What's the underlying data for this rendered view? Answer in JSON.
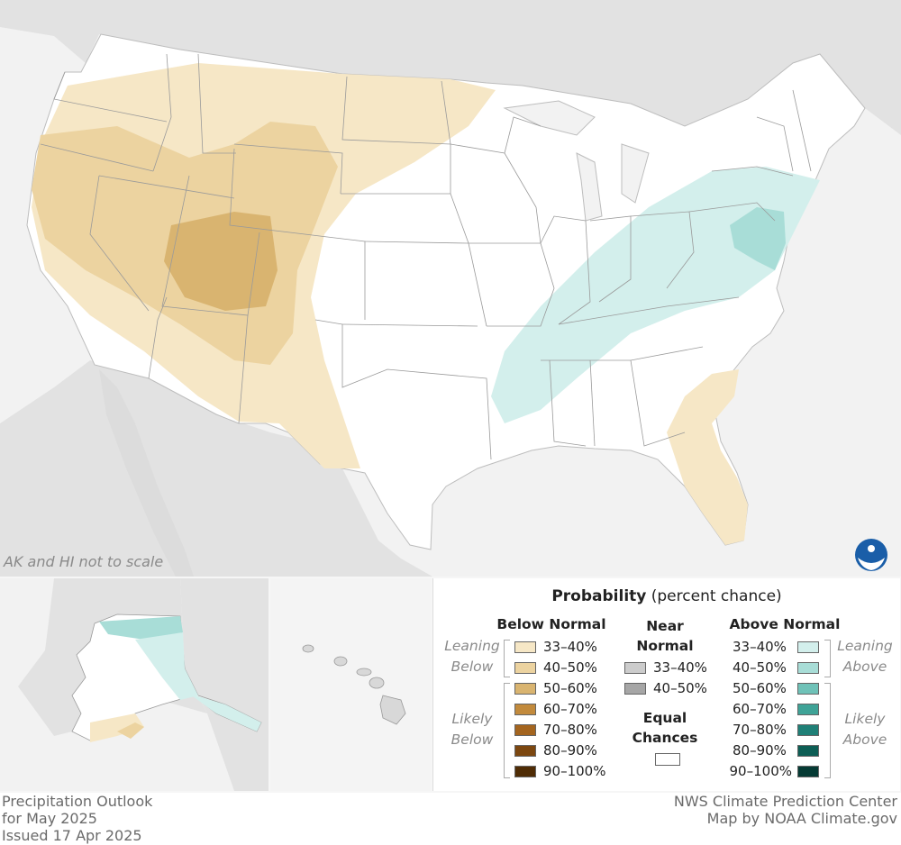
{
  "map": {
    "scale_note": "AK and HI not to scale",
    "logo": "noaa-logo",
    "colors": {
      "land_background": "#e4e4e4",
      "water": "#f2f2f2",
      "equal_chances": "#ffffff",
      "below_33_40": "#f6e7c6",
      "below_40_50": "#ecd3a0",
      "below_50_60": "#d9b470",
      "above_33_40": "#d3efec",
      "above_40_50": "#a8ddd7"
    }
  },
  "legend": {
    "title_bold": "Probability",
    "title_rest": " (percent chance)",
    "below_header": "Below Normal",
    "near_header_line1": "Near",
    "near_header_line2": "Normal",
    "above_header": "Above Normal",
    "equal_line1": "Equal",
    "equal_line2": "Chances",
    "leaning_below": [
      "Leaning",
      "Below"
    ],
    "likely_below": [
      "Likely",
      "Below"
    ],
    "leaning_above": [
      "Leaning",
      "Above"
    ],
    "likely_above": [
      "Likely",
      "Above"
    ],
    "below_items": [
      {
        "label": "33–40%",
        "color": "#f6e7c6"
      },
      {
        "label": "40–50%",
        "color": "#ecd3a0"
      },
      {
        "label": "50–60%",
        "color": "#d9b470"
      },
      {
        "label": "60–70%",
        "color": "#c28a3c"
      },
      {
        "label": "70–80%",
        "color": "#a4651f"
      },
      {
        "label": "80–90%",
        "color": "#7c4710"
      },
      {
        "label": "90–100%",
        "color": "#4f2c05"
      }
    ],
    "near_items": [
      {
        "label": "33–40%",
        "color": "#cccccc"
      },
      {
        "label": "40–50%",
        "color": "#a6a6a6"
      }
    ],
    "above_items": [
      {
        "label": "33–40%",
        "color": "#d3efec"
      },
      {
        "label": "40–50%",
        "color": "#a8ddd7"
      },
      {
        "label": "50–60%",
        "color": "#6fc2b8"
      },
      {
        "label": "60–70%",
        "color": "#3fa397"
      },
      {
        "label": "70–80%",
        "color": "#1f8077"
      },
      {
        "label": "80–90%",
        "color": "#0d5e55"
      },
      {
        "label": "90–100%",
        "color": "#053a34"
      }
    ],
    "equal_color": "#ffffff"
  },
  "footer": {
    "line1": "Precipitation Outlook",
    "line2": "for May 2025",
    "line3": "Issued 17 Apr 2025",
    "credit1": "NWS Climate Prediction Center",
    "credit2": "Map by NOAA Climate.gov"
  }
}
